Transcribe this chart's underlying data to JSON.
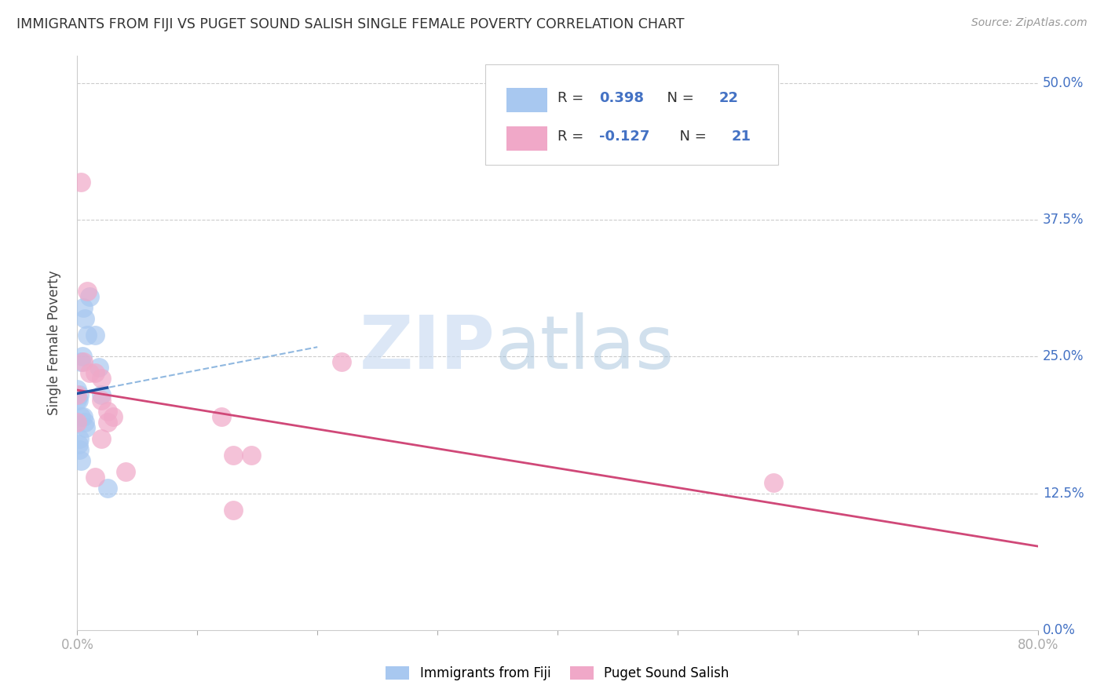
{
  "title": "IMMIGRANTS FROM FIJI VS PUGET SOUND SALISH SINGLE FEMALE POVERTY CORRELATION CHART",
  "source": "Source: ZipAtlas.com",
  "ylabel": "Single Female Poverty",
  "xmin": 0.0,
  "xmax": 0.8,
  "ymin": 0.0,
  "ymax": 0.525,
  "fiji_x": [
    0.0,
    0.0,
    0.001,
    0.001,
    0.002,
    0.002,
    0.002,
    0.003,
    0.003,
    0.003,
    0.004,
    0.005,
    0.005,
    0.006,
    0.006,
    0.007,
    0.008,
    0.01,
    0.015,
    0.018,
    0.02,
    0.025
  ],
  "fiji_y": [
    0.21,
    0.22,
    0.21,
    0.17,
    0.215,
    0.175,
    0.165,
    0.245,
    0.195,
    0.155,
    0.25,
    0.295,
    0.195,
    0.285,
    0.19,
    0.185,
    0.27,
    0.305,
    0.27,
    0.24,
    0.215,
    0.13
  ],
  "salish_x": [
    0.0,
    0.0,
    0.003,
    0.005,
    0.008,
    0.01,
    0.015,
    0.015,
    0.02,
    0.02,
    0.02,
    0.025,
    0.025,
    0.03,
    0.04,
    0.12,
    0.13,
    0.13,
    0.145,
    0.22,
    0.58
  ],
  "salish_y": [
    0.215,
    0.19,
    0.41,
    0.245,
    0.31,
    0.235,
    0.235,
    0.14,
    0.23,
    0.21,
    0.175,
    0.2,
    0.19,
    0.195,
    0.145,
    0.195,
    0.16,
    0.11,
    0.16,
    0.245,
    0.135
  ],
  "fiji_R": 0.398,
  "fiji_N": 22,
  "salish_R": -0.127,
  "salish_N": 21,
  "fiji_dot_color": "#a8c8f0",
  "salish_dot_color": "#f0a8c8",
  "fiji_line_color": "#2050a0",
  "salish_line_color": "#d04878",
  "fiji_dashed_color": "#90b8e0",
  "grid_color": "#cccccc",
  "right_tick_color": "#4472c4",
  "legend_label_fiji": "Immigrants from Fiji",
  "legend_label_salish": "Puget Sound Salish",
  "ytick_vals": [
    0.0,
    0.125,
    0.25,
    0.375,
    0.5
  ]
}
